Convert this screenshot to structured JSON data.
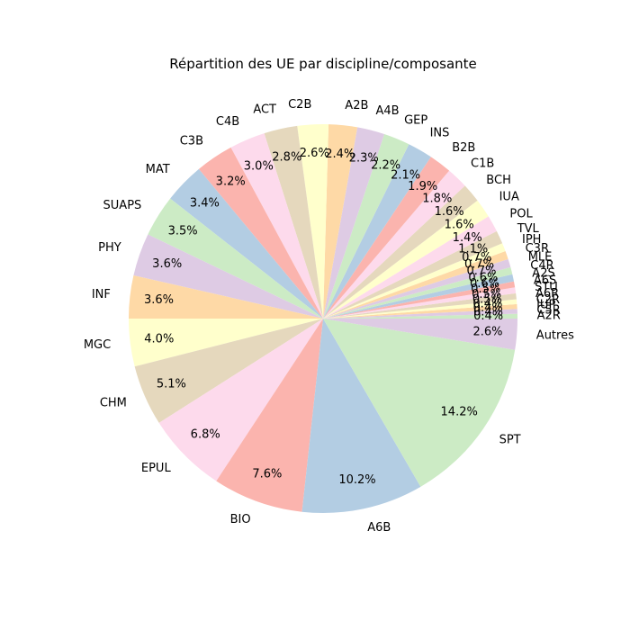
{
  "chart_data": {
    "type": "pie",
    "title": "Répartition des UE par discipline/composante",
    "start_angle_deg": 0,
    "direction": "counterclockwise",
    "slices": [
      {
        "label": "A2R",
        "value": 0.4,
        "pct_label": "0.4%",
        "color": "#ccebc5"
      },
      {
        "label": "C5R",
        "value": 0.4,
        "pct_label": "0.4%",
        "color": "#decbe4"
      },
      {
        "label": "IUP",
        "value": 0.4,
        "pct_label": "0.4%",
        "color": "#fed9a6"
      },
      {
        "label": "C2R",
        "value": 0.4,
        "pct_label": "0.4%",
        "color": "#ffffcc"
      },
      {
        "label": "A6R",
        "value": 0.5,
        "pct_label": "0.5%",
        "color": "#e5d8bd"
      },
      {
        "label": "STU",
        "value": 0.5,
        "pct_label": "0.5%",
        "color": "#fddaec"
      },
      {
        "label": "A6S",
        "value": 0.5,
        "pct_label": "0.5%",
        "color": "#fbb4ae"
      },
      {
        "label": "A2S",
        "value": 0.6,
        "pct_label": "0.6%",
        "color": "#b3cde3"
      },
      {
        "label": "C4R",
        "value": 0.6,
        "pct_label": "0.6%",
        "color": "#ccebc5"
      },
      {
        "label": "MLE",
        "value": 0.7,
        "pct_label": "0.7%",
        "color": "#decbe4"
      },
      {
        "label": "C3R",
        "value": 0.7,
        "pct_label": "0.7%",
        "color": "#fed9a6"
      },
      {
        "label": "IPH",
        "value": 0.7,
        "pct_label": "0.7%",
        "color": "#ffffcc"
      },
      {
        "label": "TVL",
        "value": 1.1,
        "pct_label": "1.1%",
        "color": "#e5d8bd"
      },
      {
        "label": "POL",
        "value": 1.4,
        "pct_label": "1.4%",
        "color": "#fddaec"
      },
      {
        "label": "IUA",
        "value": 1.6,
        "pct_label": "1.6%",
        "color": "#ffffcc"
      },
      {
        "label": "BCH",
        "value": 1.6,
        "pct_label": "1.6%",
        "color": "#e5d8bd"
      },
      {
        "label": "C1B",
        "value": 1.8,
        "pct_label": "1.8%",
        "color": "#fddaec"
      },
      {
        "label": "B2B",
        "value": 1.9,
        "pct_label": "1.9%",
        "color": "#fbb4ae"
      },
      {
        "label": "INS",
        "value": 2.1,
        "pct_label": "2.1%",
        "color": "#b3cde3"
      },
      {
        "label": "GEP",
        "value": 2.2,
        "pct_label": "2.2%",
        "color": "#ccebc5"
      },
      {
        "label": "A4B",
        "value": 2.3,
        "pct_label": "2.3%",
        "color": "#decbe4"
      },
      {
        "label": "A2B",
        "value": 2.4,
        "pct_label": "2.4%",
        "color": "#fed9a6"
      },
      {
        "label": "C2B",
        "value": 2.6,
        "pct_label": "2.6%",
        "color": "#ffffcc"
      },
      {
        "label": "ACT",
        "value": 2.8,
        "pct_label": "2.8%",
        "color": "#e5d8bd"
      },
      {
        "label": "C4B",
        "value": 3.0,
        "pct_label": "3.0%",
        "color": "#fddaec"
      },
      {
        "label": "C3B",
        "value": 3.2,
        "pct_label": "3.2%",
        "color": "#fbb4ae"
      },
      {
        "label": "MAT",
        "value": 3.4,
        "pct_label": "3.4%",
        "color": "#b3cde3"
      },
      {
        "label": "SUAPS",
        "value": 3.5,
        "pct_label": "3.5%",
        "color": "#ccebc5"
      },
      {
        "label": "PHY",
        "value": 3.6,
        "pct_label": "3.6%",
        "color": "#decbe4"
      },
      {
        "label": "INF",
        "value": 3.6,
        "pct_label": "3.6%",
        "color": "#fed9a6"
      },
      {
        "label": "MGC",
        "value": 4.0,
        "pct_label": "4.0%",
        "color": "#ffffcc"
      },
      {
        "label": "CHM",
        "value": 5.1,
        "pct_label": "5.1%",
        "color": "#e5d8bd"
      },
      {
        "label": "EPUL",
        "value": 6.8,
        "pct_label": "6.8%",
        "color": "#fddaec"
      },
      {
        "label": "BIO",
        "value": 7.6,
        "pct_label": "7.6%",
        "color": "#fbb4ae"
      },
      {
        "label": "A6B",
        "value": 10.2,
        "pct_label": "10.2%",
        "color": "#b3cde3"
      },
      {
        "label": "SPT",
        "value": 14.2,
        "pct_label": "14.2%",
        "color": "#ccebc5"
      },
      {
        "label": "Autres",
        "value": 2.6,
        "pct_label": "2.6%",
        "color": "#decbe4"
      }
    ]
  }
}
